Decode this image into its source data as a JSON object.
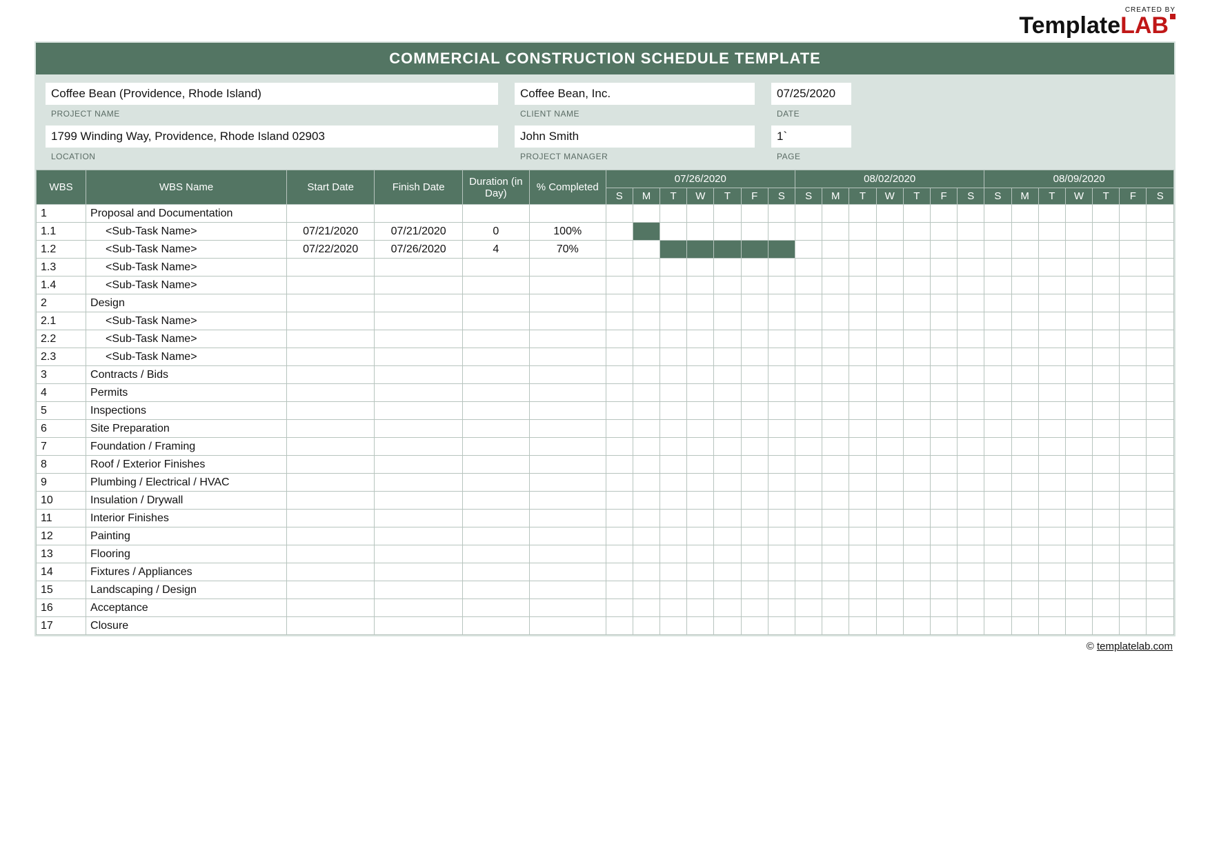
{
  "colors": {
    "header_green": "#537563",
    "panel_bg": "#d9e3df",
    "grid_border": "#b7c4be",
    "text": "#111111",
    "brand_red": "#c01717"
  },
  "brand": {
    "created_by": "CREATED BY",
    "name_part1": "Template",
    "name_part2": "LAB"
  },
  "title": "COMMERCIAL CONSTRUCTION SCHEDULE TEMPLATE",
  "meta": {
    "project_name": {
      "label": "PROJECT NAME",
      "value": "Coffee Bean (Providence, Rhode Island)"
    },
    "client_name": {
      "label": "CLIENT NAME",
      "value": "Coffee Bean, Inc."
    },
    "date": {
      "label": "DATE",
      "value": "07/25/2020"
    },
    "location": {
      "label": "LOCATION",
      "value": "1799  Winding Way, Providence, Rhode Island   02903"
    },
    "project_manager": {
      "label": "PROJECT MANAGER",
      "value": "John Smith"
    },
    "page": {
      "label": "PAGE",
      "value": "1`"
    }
  },
  "columns": {
    "wbs": "WBS",
    "wbs_name": "WBS Name",
    "start": "Start Date",
    "finish": "Finish Date",
    "duration": "Duration (in Day)",
    "pct": "% Completed"
  },
  "weeks": [
    {
      "label": "07/26/2020",
      "days": [
        "S",
        "M",
        "T",
        "W",
        "T",
        "F",
        "S"
      ]
    },
    {
      "label": "08/02/2020",
      "days": [
        "S",
        "M",
        "T",
        "W",
        "T",
        "F",
        "S"
      ]
    },
    {
      "label": "08/09/2020",
      "days": [
        "S",
        "M",
        "T",
        "W",
        "T",
        "F",
        "S"
      ]
    }
  ],
  "rows": [
    {
      "wbs": "1",
      "name": "Proposal and Documentation",
      "sub": false,
      "start": "",
      "finish": "",
      "dur": "",
      "pct": "",
      "fill": []
    },
    {
      "wbs": "1.1",
      "name": "<Sub-Task Name>",
      "sub": true,
      "start": "07/21/2020",
      "finish": "07/21/2020",
      "dur": "0",
      "pct": "100%",
      "fill": [
        1
      ]
    },
    {
      "wbs": "1.2",
      "name": "<Sub-Task Name>",
      "sub": true,
      "start": "07/22/2020",
      "finish": "07/26/2020",
      "dur": "4",
      "pct": "70%",
      "fill": [
        2,
        3,
        4,
        5,
        6
      ]
    },
    {
      "wbs": "1.3",
      "name": "<Sub-Task Name>",
      "sub": true,
      "start": "",
      "finish": "",
      "dur": "",
      "pct": "",
      "fill": []
    },
    {
      "wbs": "1.4",
      "name": "<Sub-Task Name>",
      "sub": true,
      "start": "",
      "finish": "",
      "dur": "",
      "pct": "",
      "fill": []
    },
    {
      "wbs": "2",
      "name": "Design",
      "sub": false,
      "start": "",
      "finish": "",
      "dur": "",
      "pct": "",
      "fill": []
    },
    {
      "wbs": "2.1",
      "name": "<Sub-Task Name>",
      "sub": true,
      "start": "",
      "finish": "",
      "dur": "",
      "pct": "",
      "fill": []
    },
    {
      "wbs": "2.2",
      "name": "<Sub-Task Name>",
      "sub": true,
      "start": "",
      "finish": "",
      "dur": "",
      "pct": "",
      "fill": []
    },
    {
      "wbs": "2.3",
      "name": "<Sub-Task Name>",
      "sub": true,
      "start": "",
      "finish": "",
      "dur": "",
      "pct": "",
      "fill": []
    },
    {
      "wbs": "3",
      "name": "Contracts / Bids",
      "sub": false,
      "start": "",
      "finish": "",
      "dur": "",
      "pct": "",
      "fill": []
    },
    {
      "wbs": "4",
      "name": "Permits",
      "sub": false,
      "start": "",
      "finish": "",
      "dur": "",
      "pct": "",
      "fill": []
    },
    {
      "wbs": "5",
      "name": "Inspections",
      "sub": false,
      "start": "",
      "finish": "",
      "dur": "",
      "pct": "",
      "fill": []
    },
    {
      "wbs": "6",
      "name": "Site Preparation",
      "sub": false,
      "start": "",
      "finish": "",
      "dur": "",
      "pct": "",
      "fill": []
    },
    {
      "wbs": "7",
      "name": "Foundation / Framing",
      "sub": false,
      "start": "",
      "finish": "",
      "dur": "",
      "pct": "",
      "fill": []
    },
    {
      "wbs": "8",
      "name": "Roof / Exterior Finishes",
      "sub": false,
      "start": "",
      "finish": "",
      "dur": "",
      "pct": "",
      "fill": []
    },
    {
      "wbs": "9",
      "name": "Plumbing / Electrical / HVAC",
      "sub": false,
      "start": "",
      "finish": "",
      "dur": "",
      "pct": "",
      "fill": []
    },
    {
      "wbs": "10",
      "name": "Insulation / Drywall",
      "sub": false,
      "start": "",
      "finish": "",
      "dur": "",
      "pct": "",
      "fill": []
    },
    {
      "wbs": "11",
      "name": "Interior Finishes",
      "sub": false,
      "start": "",
      "finish": "",
      "dur": "",
      "pct": "",
      "fill": []
    },
    {
      "wbs": "12",
      "name": "Painting",
      "sub": false,
      "start": "",
      "finish": "",
      "dur": "",
      "pct": "",
      "fill": []
    },
    {
      "wbs": "13",
      "name": "Flooring",
      "sub": false,
      "start": "",
      "finish": "",
      "dur": "",
      "pct": "",
      "fill": []
    },
    {
      "wbs": "14",
      "name": "Fixtures / Appliances",
      "sub": false,
      "start": "",
      "finish": "",
      "dur": "",
      "pct": "",
      "fill": []
    },
    {
      "wbs": "15",
      "name": "Landscaping / Design",
      "sub": false,
      "start": "",
      "finish": "",
      "dur": "",
      "pct": "",
      "fill": []
    },
    {
      "wbs": "16",
      "name": "Acceptance",
      "sub": false,
      "start": "",
      "finish": "",
      "dur": "",
      "pct": "",
      "fill": []
    },
    {
      "wbs": "17",
      "name": "Closure",
      "sub": false,
      "start": "",
      "finish": "",
      "dur": "",
      "pct": "",
      "fill": []
    }
  ],
  "footer": {
    "copyright": "©",
    "link_text": "templatelab.com"
  }
}
